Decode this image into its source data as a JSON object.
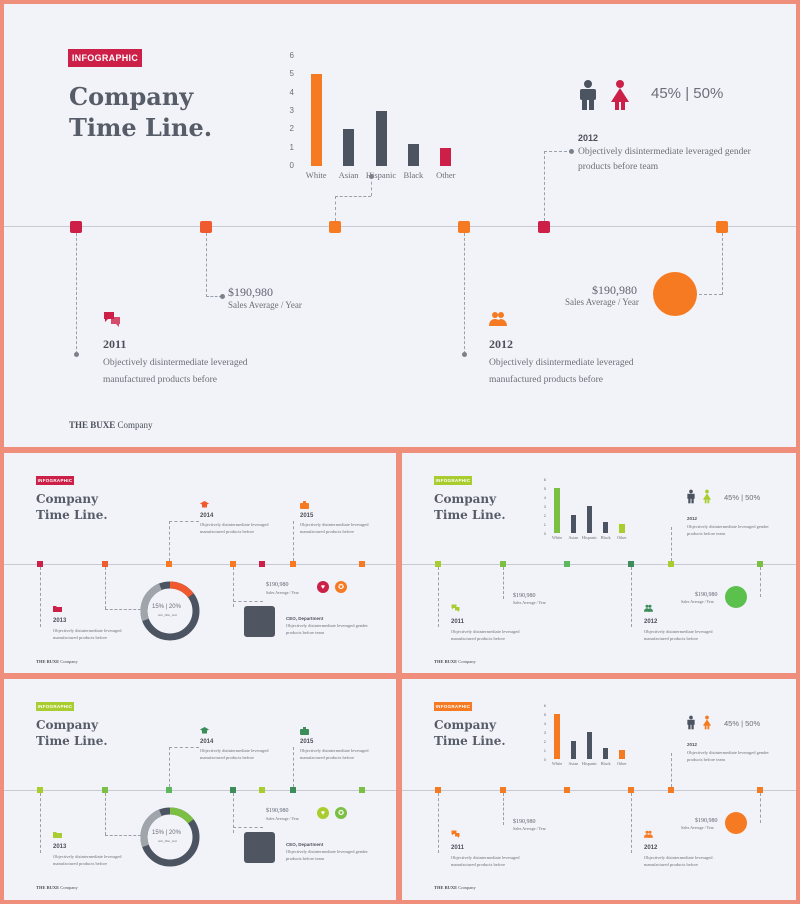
{
  "colors": {
    "red": "#cc2049",
    "orange": "#f67a22",
    "green": "#7bc043",
    "darkbar": "#4c5361",
    "lime": "#a9cd2e"
  },
  "main": {
    "badge": "INFOGRAPHIC",
    "title": "Company\nTime Line.",
    "gender_stats": "45% | 50%",
    "top_item": {
      "year": "2012",
      "text": "Objectively disintermediate leveraged gender\nproducts before team"
    },
    "money_left": {
      "value": "$190,980",
      "label": "Sales Average / Year"
    },
    "money_right": {
      "value": "$190,980",
      "label": "Sales Average / Year"
    },
    "item_2011": {
      "year": "2011",
      "text": "Objectively disintermediate leveraged\nmanufactured products before"
    },
    "item_2012": {
      "year": "2012",
      "text": "Objectively disintermediate leveraged\nmanufactured products before"
    },
    "footer_brand": "THE BUXE",
    "footer_company": "Company"
  },
  "thumb_a": {
    "badge": "INFOGRAPHIC",
    "title": "Company\nTime Line.",
    "y2013": "2013",
    "t2013": "Objectively disintermediate leveraged\nmanufactured products before",
    "y2014": "2014",
    "t2014": "Objectively disintermediate leveraged\nmanufactured products before",
    "y2015": "2015",
    "t2015": "Objectively disintermediate leveraged\nmanufactured products before",
    "donut_pct": "15% | 20%",
    "donut_sub": "sub_title_text",
    "money": "$190,980",
    "money_label": "Sales Average / Year",
    "ceo": "CEO, Department",
    "ceo_text": "Objectively disintermediate leveraged gender\nproducts before team",
    "footer_brand": "THE BUXE",
    "footer_company": "Company"
  },
  "thumb_b": {
    "badge": "INFOGRAPHIC",
    "title": "Company\nTime Line.",
    "gender_stats": "45% | 50%",
    "y_top": "2012",
    "t_top": "Objectively disintermediate leveraged gender\nproducts before team",
    "money_left": "$190,980",
    "money_left_label": "Sales Average / Year",
    "money_right": "$190,980",
    "money_right_label": "Sales Average / Year",
    "y2011": "2011",
    "t2011": "Objectively disintermediate leveraged\nmanufactured products before",
    "y2012": "2012",
    "t2012": "Objectively disintermediate leveraged\nmanufactured products before",
    "footer_brand": "THE BUXE",
    "footer_company": "Company"
  },
  "chart_data": {
    "type": "bar",
    "categories": [
      "White",
      "Asian",
      "Hispanic",
      "Black",
      "Other"
    ],
    "values": [
      5,
      2,
      3,
      1.2,
      1
    ],
    "ylim": [
      0,
      6
    ],
    "yticks": [
      "6",
      "5",
      "4",
      "3",
      "2",
      "1",
      "0"
    ],
    "xlabel": "",
    "ylabel": ""
  }
}
